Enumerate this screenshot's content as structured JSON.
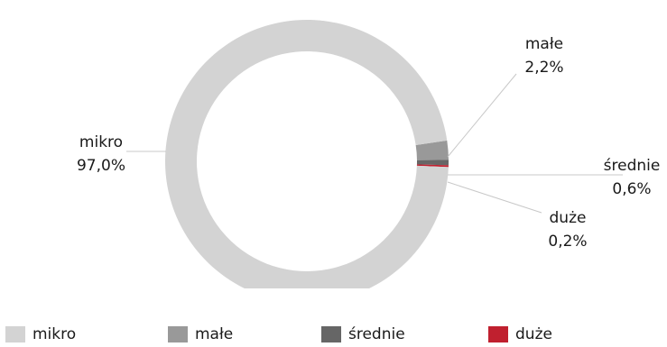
{
  "chart_data": {
    "type": "pie",
    "variant": "donut",
    "categories": [
      "mikro",
      "małe",
      "średnie",
      "duże"
    ],
    "values": [
      97.0,
      2.2,
      0.6,
      0.2
    ],
    "value_labels": [
      "97,0%",
      "2,2%",
      "0,6%",
      "0,2%"
    ],
    "colors": [
      "#d3d3d3",
      "#999999",
      "#666666",
      "#c0202f"
    ],
    "legend_position": "bottom",
    "title": ""
  }
}
